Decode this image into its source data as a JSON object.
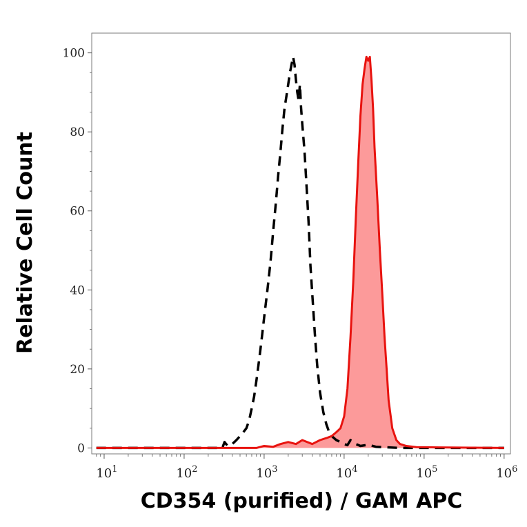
{
  "chart_data": {
    "type": "area",
    "title": "",
    "xlabel": "CD354 (purified) / GAM APC",
    "ylabel": "Relative Cell Count",
    "x_scale": "log",
    "xlim": [
      7,
      1200000
    ],
    "ylim": [
      -1.5,
      105
    ],
    "grid": false,
    "legend": "none",
    "x_ticks": [
      {
        "base": "10",
        "exp": "1",
        "value": 10
      },
      {
        "base": "10",
        "exp": "2",
        "value": 100
      },
      {
        "base": "10",
        "exp": "3",
        "value": 1000
      },
      {
        "base": "10",
        "exp": "4",
        "value": 10000
      },
      {
        "base": "10",
        "exp": "5",
        "value": 100000
      },
      {
        "base": "10",
        "exp": "6",
        "value": 1000000
      }
    ],
    "y_ticks": [
      {
        "label": "0",
        "value": 0
      },
      {
        "label": "20",
        "value": 20
      },
      {
        "label": "40",
        "value": 40
      },
      {
        "label": "60",
        "value": 60
      },
      {
        "label": "80",
        "value": 80
      },
      {
        "label": "100",
        "value": 100
      }
    ],
    "series": [
      {
        "style": "dashed",
        "color": "#000000",
        "fill": "none",
        "x": [
          8,
          300,
          320,
          350,
          400,
          450,
          500,
          550,
          600,
          650,
          700,
          750,
          800,
          850,
          900,
          950,
          1000,
          1100,
          1200,
          1300,
          1400,
          1500,
          1600,
          1700,
          1800,
          1900,
          2000,
          2100,
          2200,
          2300,
          2400,
          2500,
          2600,
          2700,
          2800,
          2900,
          3000,
          3200,
          3400,
          3600,
          3800,
          4000,
          4300,
          4600,
          5000,
          5500,
          6000,
          6500,
          7000,
          8000,
          9000,
          10000,
          11000,
          12000,
          14000,
          16000,
          20000,
          25000,
          50000,
          1000000
        ],
        "y": [
          0,
          0,
          1.5,
          0.5,
          1,
          2,
          3,
          4,
          5,
          7,
          10,
          13,
          17,
          21,
          25,
          29,
          33,
          40,
          47,
          55,
          62,
          69,
          75,
          81,
          86,
          89,
          92,
          95,
          97,
          99,
          97,
          93,
          90,
          88,
          92,
          86,
          82,
          75,
          66,
          57,
          46,
          39,
          29,
          21,
          14,
          9,
          6,
          4,
          3,
          2,
          1.5,
          1,
          0.7,
          2,
          1,
          0.5,
          0.8,
          0.3,
          0,
          0
        ]
      },
      {
        "style": "solid",
        "color": "#e8130f",
        "fill": "#fc9a9a",
        "x": [
          8,
          800,
          1000,
          1300,
          1600,
          2000,
          2500,
          3000,
          4000,
          5000,
          6000,
          7000,
          8000,
          9000,
          10000,
          11000,
          12000,
          13000,
          14000,
          15000,
          16000,
          17000,
          18000,
          19000,
          20000,
          21000,
          22000,
          23000,
          24000,
          26000,
          28000,
          30000,
          32000,
          34000,
          36000,
          40000,
          45000,
          50000,
          60000,
          80000,
          1000000
        ],
        "y": [
          0,
          0,
          0.5,
          0.3,
          1,
          1.5,
          1,
          2,
          1,
          2,
          2.5,
          3,
          4,
          5,
          8,
          15,
          28,
          42,
          58,
          72,
          84,
          92,
          96,
          99,
          98,
          99,
          93,
          86,
          76,
          63,
          50,
          39,
          28,
          20,
          12,
          5,
          2,
          1,
          0.5,
          0.2,
          0
        ]
      }
    ]
  }
}
